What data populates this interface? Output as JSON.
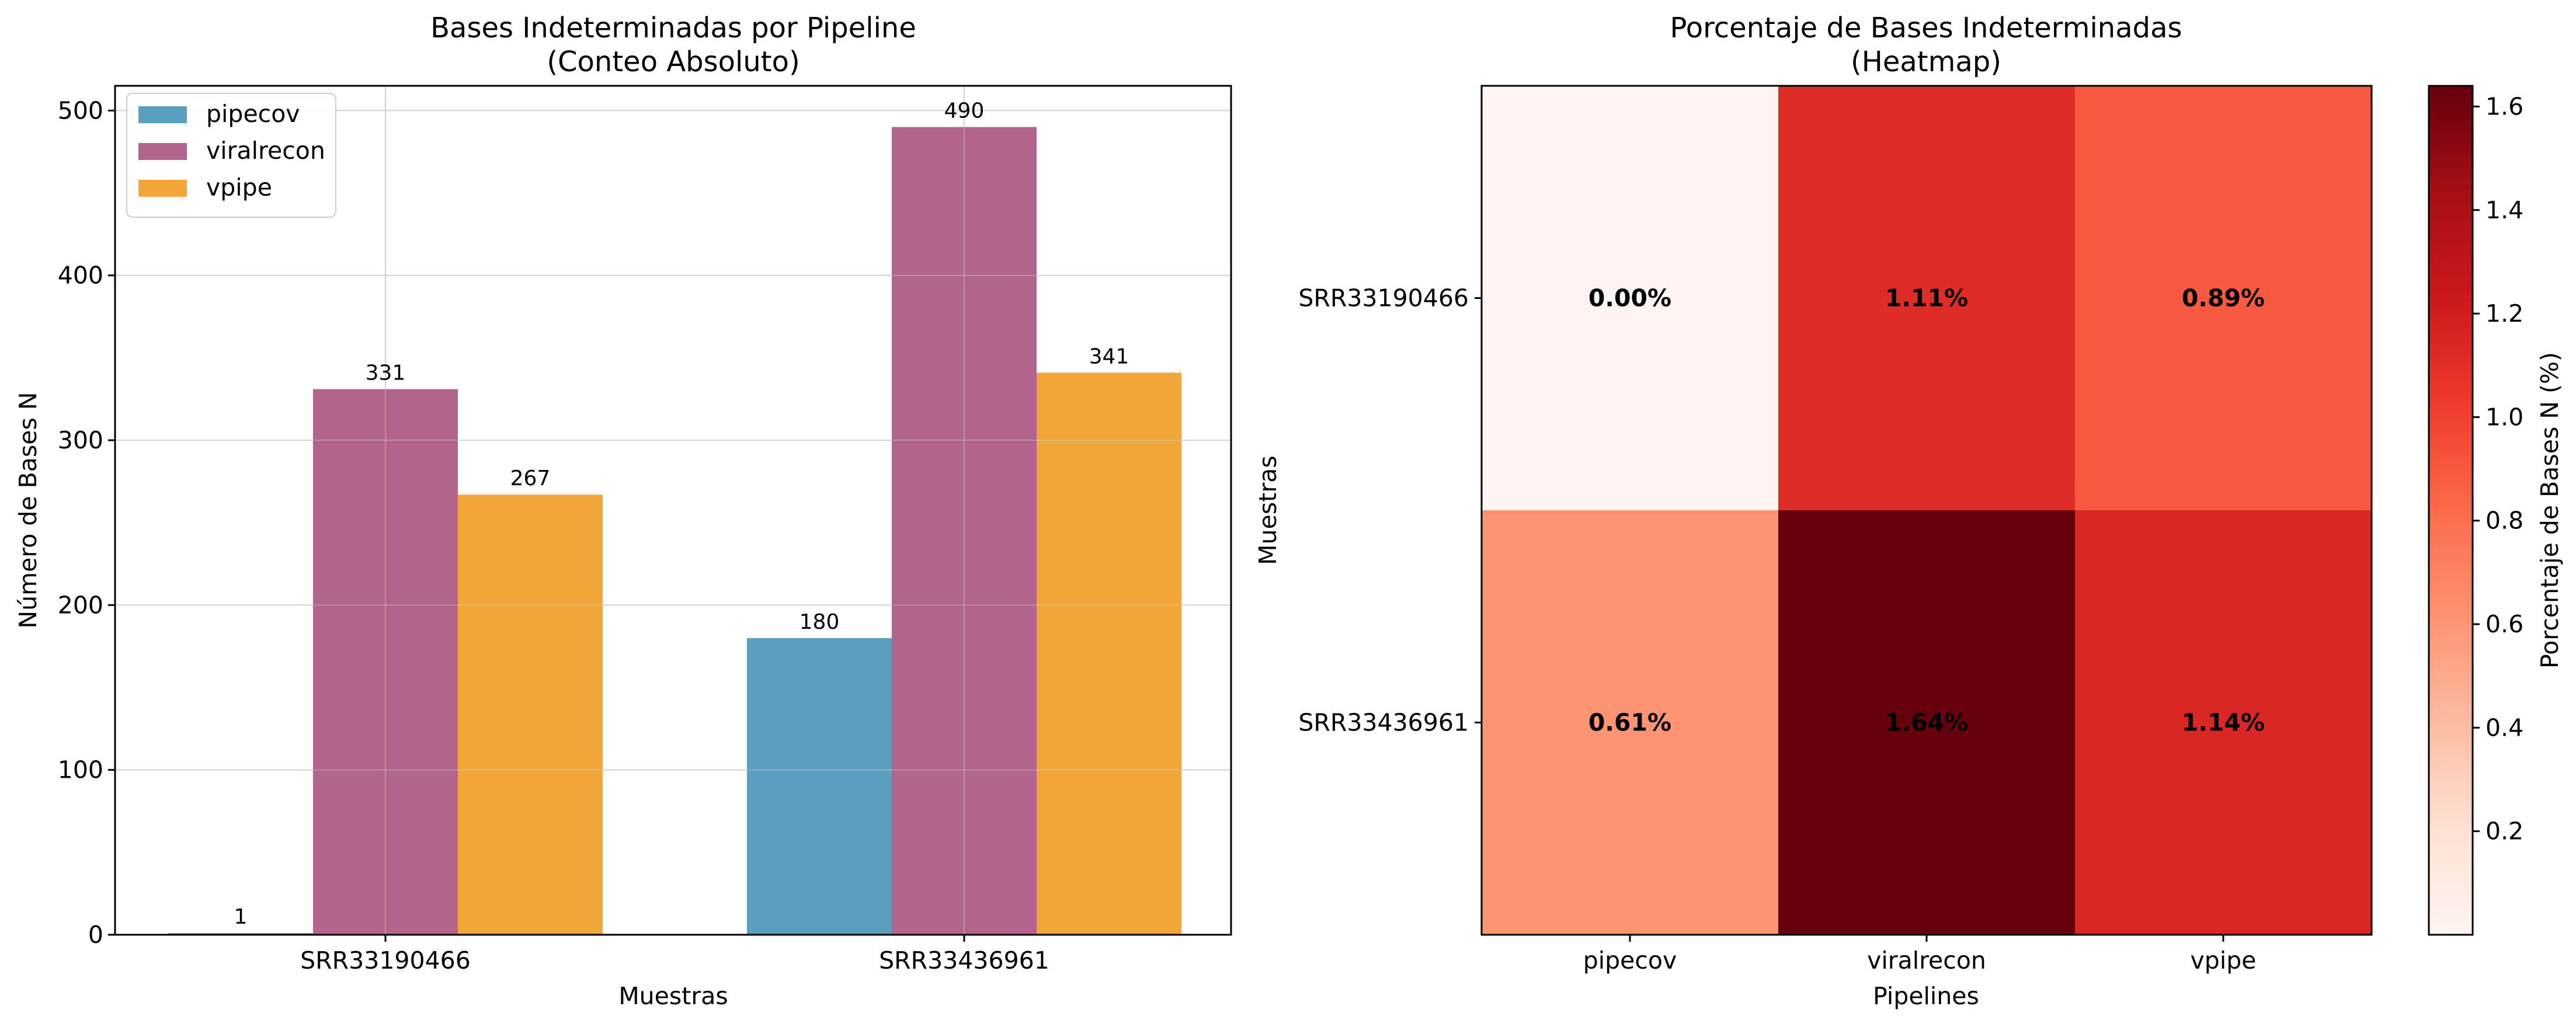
{
  "chart_data": [
    {
      "type": "bar",
      "title": "Bases Indeterminadas por Pipeline",
      "subtitle": "(Conteo Absoluto)",
      "xlabel": "Muestras",
      "ylabel": "Número de Bases N",
      "categories": [
        "SRR33190466",
        "SRR33436961"
      ],
      "series": [
        {
          "name": "pipecov",
          "values": [
            1,
            180
          ],
          "color": "#5a9fbd"
        },
        {
          "name": "viralrecon",
          "values": [
            331,
            490
          ],
          "color": "#b2648b"
        },
        {
          "name": "vpipe",
          "values": [
            267,
            341
          ],
          "color": "#f2a636"
        }
      ],
      "data_labels": [
        [
          "1",
          "180"
        ],
        [
          "331",
          "490"
        ],
        [
          "267",
          "341"
        ]
      ],
      "ylim": [
        0,
        515
      ],
      "yticks": [
        0,
        100,
        200,
        300,
        400,
        500
      ],
      "grid": true,
      "legend": "top-left"
    },
    {
      "type": "heatmap",
      "title": "Porcentaje de Bases Indeterminadas",
      "subtitle": "(Heatmap)",
      "xlabel": "Pipelines",
      "ylabel": "Muestras",
      "x": [
        "pipecov",
        "viralrecon",
        "vpipe"
      ],
      "y": [
        "SRR33190466",
        "SRR33436961"
      ],
      "values": [
        [
          0.0,
          1.11,
          0.89
        ],
        [
          0.61,
          1.64,
          1.14
        ]
      ],
      "cell_labels": [
        [
          "0.00%",
          "1.11%",
          "0.89%"
        ],
        [
          "0.61%",
          "1.64%",
          "1.14%"
        ]
      ],
      "colormap": "Reds",
      "colorbar": {
        "label": "Porcentaje de Bases N (%)",
        "range": [
          0.0,
          1.64
        ],
        "ticks": [
          0.2,
          0.4,
          0.6,
          0.8,
          1.0,
          1.2,
          1.4,
          1.6
        ],
        "tick_labels": [
          "0.2",
          "0.4",
          "0.6",
          "0.8",
          "1.0",
          "1.2",
          "1.4",
          "1.6"
        ]
      }
    }
  ]
}
